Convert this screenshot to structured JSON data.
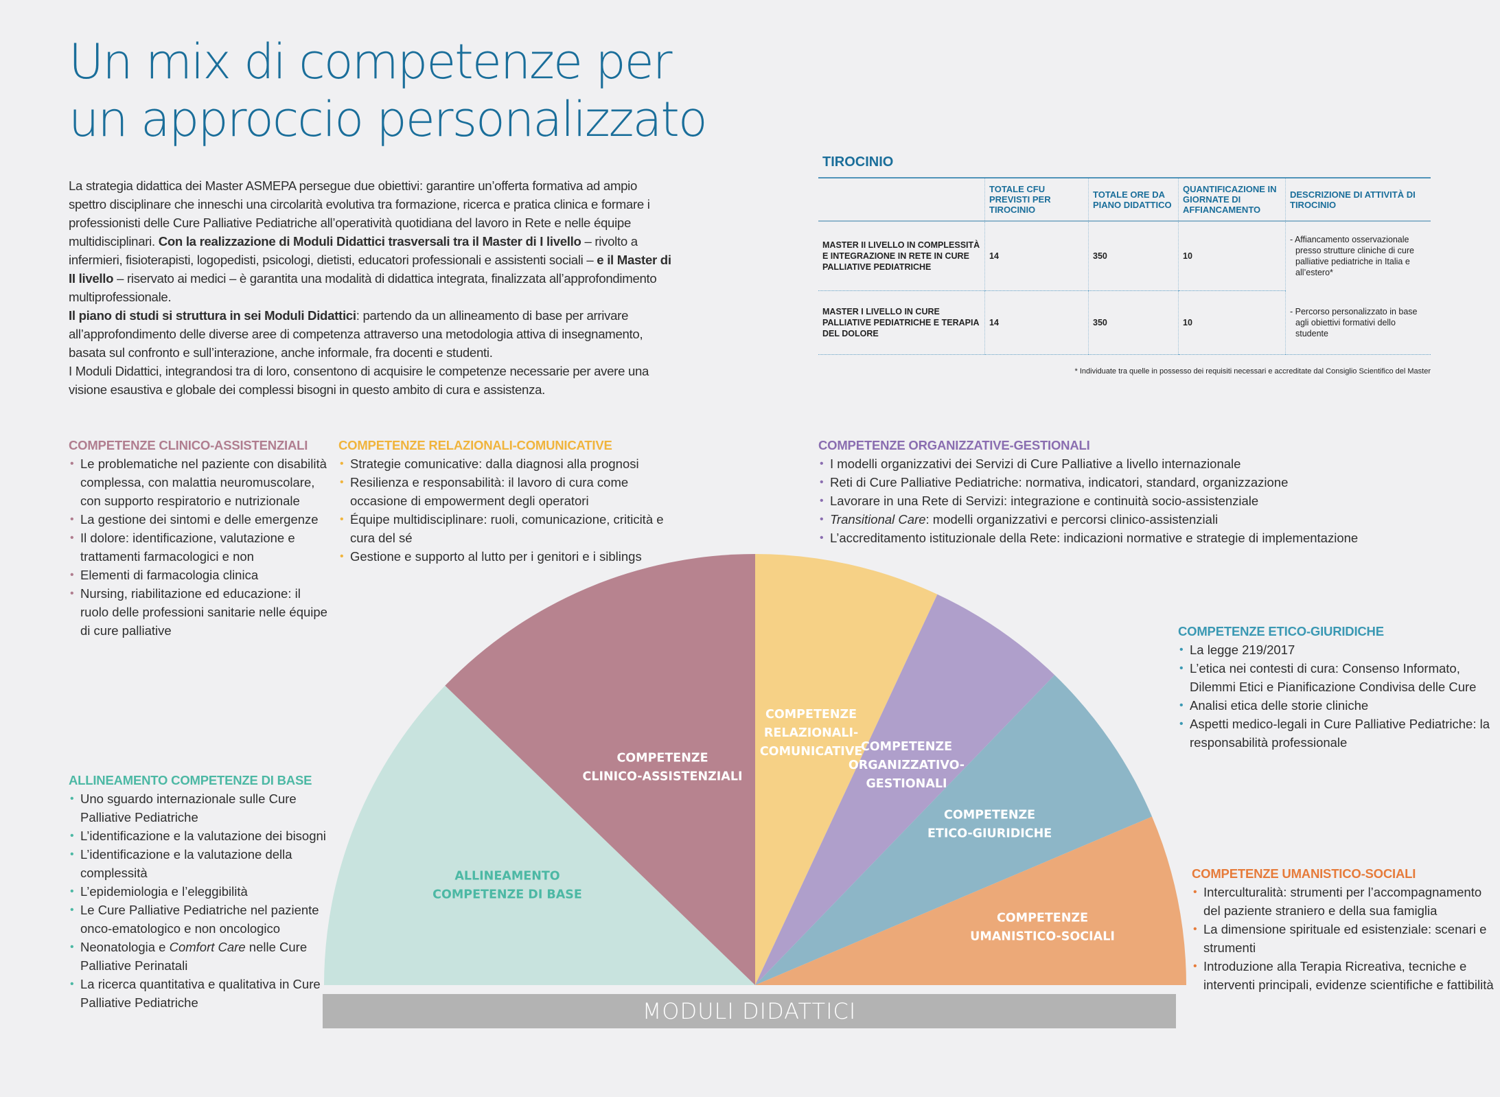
{
  "title": {
    "line1": "Un mix di competenze per",
    "line2": "un approccio personalizzato"
  },
  "colors": {
    "title": "#1a6e9a",
    "base": "#c8e3de",
    "base_text": "#4cb8a4",
    "clinico": "#b7838f",
    "relazionali": "#f6d186",
    "organizzativo": "#af9fcb",
    "etico": "#8db6c7",
    "umanistico": "#eca978",
    "bar": "#b3b3b3"
  },
  "intro": {
    "p1_a": "La strategia didattica dei Master ASMEPA persegue due obiettivi: garantire un’offerta formativa ad ampio spettro disciplinare che inneschi una circolarità evolutiva tra formazione, ricerca e pratica clinica e formare i professionisti delle Cure Palliative Pediatriche all’operatività quotidiana del lavoro in Rete e nelle équipe multidisciplinari. ",
    "p1_b": "Con la realizzazione di Moduli Didattici trasversali tra il Master di I livello",
    "p1_c": " – rivolto a infermieri, fisioterapisti, logopedisti, psicologi, dietisti, educatori professionali e assistenti sociali – ",
    "p1_d": "e il Master di II livello",
    "p1_e": " – riservato ai medici – è garantita una modalità di didattica integrata, finalizzata all’approfondimento multiprofessionale.",
    "p2_a": "Il piano di studi si struttura in sei Moduli Didattici",
    "p2_b": ": partendo da un allineamento di base per arrivare all’approfondimento delle diverse aree di competenza attraverso una metodologia attiva di insegnamento, basata sul confronto e sull’interazione, anche informale, fra docenti e studenti.",
    "p3": "I Moduli Didattici, integrandosi tra di loro, consentono di acquisire le competenze necessarie per avere una visione esaustiva e globale dei complessi bisogni in questo ambito di cura e assistenza."
  },
  "tirocinio": {
    "title": "TIROCINIO",
    "headers": [
      "",
      "TOTALE CFU PREVISTI PER TIROCINIO",
      "TOTALE ORE DA PIANO DIDATTICO",
      "QUANTIFICAZIONE IN GIORNATE DI AFFIANCAMENTO",
      "DESCRIZIONE DI ATTIVITÀ DI TIROCINIO"
    ],
    "rows": [
      {
        "label": "MASTER II LIVELLO IN COMPLESSITÀ E INTEGRAZIONE IN RETE IN CURE PALLIATIVE PEDIATRICHE",
        "cfu": "14",
        "ore": "350",
        "giornate": "10",
        "descrizione": "- Affiancamento osservazionale presso strutture cliniche di cure palliative pediatriche in Italia e all’estero*"
      },
      {
        "label": "MASTER I LIVELLO IN CURE PALLIATIVE PEDIATRICHE E TERAPIA DEL DOLORE",
        "cfu": "14",
        "ore": "350",
        "giornate": "10",
        "descrizione": "- Percorso personalizzato in base agli obiettivi formativi dello studente"
      }
    ],
    "footnote": "* Individuate tra quelle in possesso dei requisiti necessari e accreditate dal Consiglio Scientifico del Master"
  },
  "competenze": {
    "clinico": {
      "title": "COMPETENZE CLINICO-ASSISTENZIALI",
      "items": [
        "Le problematiche nel paziente con disabilità complessa, con malattia neuromuscolare, con supporto respiratorio e nutrizionale",
        "La gestione dei sintomi e delle emergenze",
        "Il dolore: identificazione, valutazione e trattamenti farmacologici e non",
        "Elementi di farmacologia clinica",
        "Nursing, riabilitazione ed educazione: il ruolo delle professioni sanitarie nelle équipe di cure palliative"
      ]
    },
    "relazionali": {
      "title": "COMPETENZE RELAZIONALI-COMUNICATIVE",
      "items": [
        "Strategie comunicative: dalla diagnosi alla prognosi",
        "Resilienza e responsabilità: il lavoro di cura come occasione di empowerment degli operatori",
        "Équipe multidisciplinare: ruoli, comunicazione, criticità e cura del sé",
        "Gestione e supporto al lutto per i genitori e i siblings"
      ]
    },
    "organizzative": {
      "title": "COMPETENZE ORGANIZZATIVE-GESTIONALI",
      "items": [
        "I modelli organizzativi dei Servizi di Cure Palliative a livello internazionale",
        "Reti di Cure Palliative Pediatriche: normativa, indicatori, standard, organizzazione",
        "Lavorare in una Rete di Servizi: integrazione e continuità socio-assistenziale",
        "L’accreditamento istituzionale della Rete: indicazioni normative e strategie di implementazione"
      ],
      "item_italic": {
        "italic": "Transitional Care",
        "rest": ": modelli organizzativi e percorsi clinico-assistenziali"
      }
    },
    "etico": {
      "title": "COMPETENZE ETICO-GIURIDICHE",
      "items": [
        "La legge 219/2017",
        "L’etica nei contesti di cura: Consenso Informato, Dilemmi Etici e Pianificazione Condivisa delle Cure",
        "Analisi etica delle storie cliniche",
        "Aspetti medico-legali in Cure Palliative Pediatriche: la responsabilità professionale"
      ]
    },
    "umanistico": {
      "title": "COMPETENZE UMANISTICO-SOCIALI",
      "items": [
        "Interculturalità: strumenti per l’accompagnamento del paziente straniero e della sua famiglia",
        "La dimensione spirituale ed esistenziale: scenari e strumenti",
        "Introduzione alla Terapia Ricreativa, tecniche e interventi principali, evidenze scientifiche e fattibilità"
      ]
    },
    "base": {
      "title": "ALLINEAMENTO COMPETENZE DI BASE",
      "items": [
        "Uno sguardo internazionale sulle Cure Palliative Pediatriche",
        "L’identificazione e la valutazione dei bisogni",
        "L’identificazione e la valutazione della complessità",
        "L’epidemiologia e l’eleggibilità",
        "Le Cure Palliative Pediatriche nel paziente onco-ematologico e non oncologico"
      ],
      "item_italic": {
        "pre": "Neonatologia e ",
        "italic": "Comfort Care",
        "post": " nelle Cure Palliative Perinatali"
      },
      "last_item": "La ricerca quantitativa e qualitativa in Cure Palliative Pediatriche"
    }
  },
  "chart_data": {
    "type": "pie",
    "subtype": "semicircle",
    "title": "MODULI DIDATTICI",
    "unit": "degrees of half circle (total 180)",
    "categories": [
      "ALLINEAMENTO COMPETENZE DI BASE",
      "COMPETENZE CLINICO-ASSISTENZIALI",
      "COMPETENZE RELAZIONALI-COMUNICATIVE",
      "COMPETENZE ORGANIZZATIVO-GESTIONALI",
      "COMPETENZE ETICO-GIURIDICHE",
      "COMPETENZE UMANISTICO-SOCIALI"
    ],
    "values": [
      44,
      46,
      25,
      19,
      23,
      23
    ],
    "colors": [
      "#c8e3de",
      "#b7838f",
      "#f6d186",
      "#af9fcb",
      "#8db6c7",
      "#eca978"
    ],
    "label_colors": [
      "#4cb8a4",
      "#ffffff",
      "#ffffff",
      "#ffffff",
      "#ffffff",
      "#ffffff"
    ],
    "labels": [
      [
        "ALLINEAMENTO",
        "COMPETENZE DI BASE"
      ],
      [
        "COMPETENZE",
        "CLINICO-ASSISTENZIALI"
      ],
      [
        "COMPETENZE",
        "RELAZIONALI-",
        "COMUNICATIVE"
      ],
      [
        "COMPETENZE",
        "ORGANIZZATIVO-",
        "GESTIONALI"
      ],
      [
        "COMPETENZE",
        "ETICO-GIURIDICHE"
      ],
      [
        "COMPETENZE",
        "UMANISTICO-SOCIALI"
      ]
    ],
    "legend": "none"
  }
}
